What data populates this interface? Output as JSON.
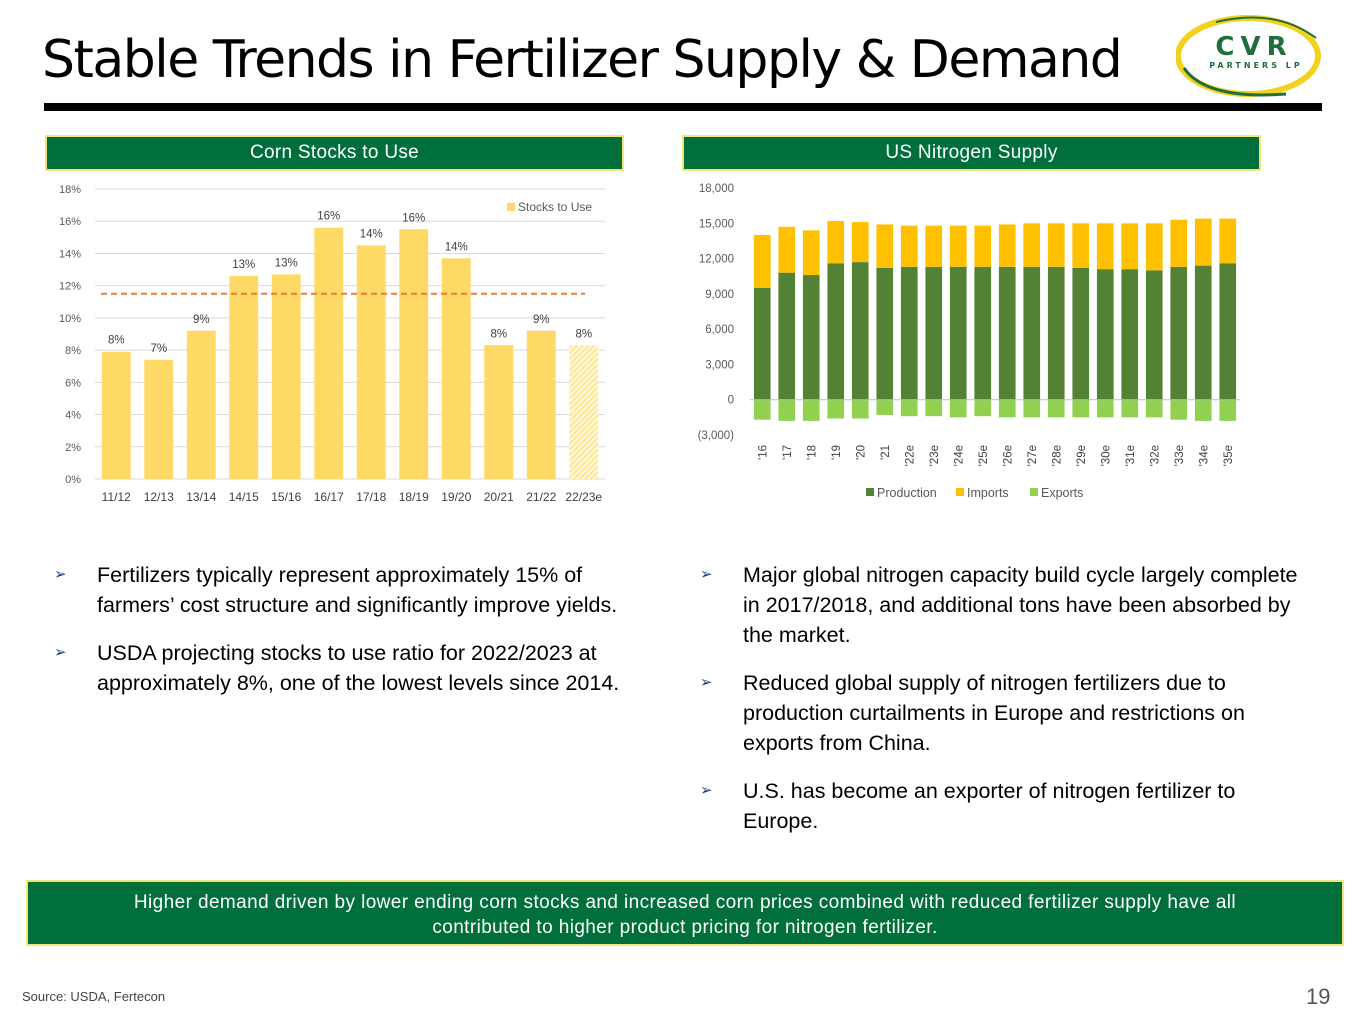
{
  "header": {
    "title": "Stable Trends in Fertilizer Supply & Demand"
  },
  "logo": {
    "line1": "CVR",
    "line2": "PARTNERS LP",
    "colors": {
      "green": "#1f6f3a",
      "yellow": "#f2d21e"
    }
  },
  "left_panel": {
    "header": "Corn Stocks to Use"
  },
  "right_panel": {
    "header": "US Nitrogen Supply"
  },
  "chart_data": [
    {
      "type": "bar",
      "title": "Corn Stocks to Use",
      "categories": [
        "11/12",
        "12/13",
        "13/14",
        "14/15",
        "15/16",
        "16/17",
        "17/18",
        "18/19",
        "19/20",
        "20/21",
        "21/22",
        "22/23e"
      ],
      "series": [
        {
          "name": "Stocks to Use",
          "values": [
            7.9,
            7.4,
            9.2,
            12.6,
            12.7,
            15.6,
            14.5,
            15.5,
            13.7,
            8.3,
            9.2,
            8.3
          ],
          "color": "#ffd966"
        }
      ],
      "data_labels": [
        "8%",
        "7%",
        "9%",
        "13%",
        "13%",
        "16%",
        "14%",
        "16%",
        "14%",
        "8%",
        "9%",
        "8%"
      ],
      "estimate_categories": [
        "22/23e"
      ],
      "average_line": {
        "value": 11.5,
        "color": "#ed7d31",
        "style": "dashed"
      },
      "ylim": [
        0,
        18
      ],
      "yticks": [
        "0%",
        "2%",
        "4%",
        "6%",
        "8%",
        "10%",
        "12%",
        "14%",
        "16%",
        "18%"
      ],
      "ytick_values": [
        0,
        2,
        4,
        6,
        8,
        10,
        12,
        14,
        16,
        18
      ],
      "grid": true,
      "legend": "top-right"
    },
    {
      "type": "bar",
      "stacked": true,
      "title": "US Nitrogen Supply",
      "categories": [
        "'16",
        "'17",
        "'18",
        "'19",
        "'20",
        "'21",
        "'22e",
        "'23e",
        "'24e",
        "'25e",
        "'26e",
        "'27e",
        "'28e",
        "'29e",
        "'30e",
        "'31e",
        "'32e",
        "'33e",
        "'34e",
        "'35e"
      ],
      "series": [
        {
          "name": "Production",
          "color": "#548235",
          "values": [
            9500,
            10800,
            10600,
            11600,
            11700,
            11200,
            11300,
            11300,
            11300,
            11300,
            11300,
            11300,
            11300,
            11200,
            11100,
            11100,
            11000,
            11300,
            11400,
            11600
          ]
        },
        {
          "name": "Imports",
          "color": "#ffc000",
          "values": [
            4500,
            3900,
            3800,
            3600,
            3400,
            3700,
            3500,
            3500,
            3500,
            3500,
            3600,
            3700,
            3700,
            3800,
            3900,
            3900,
            4000,
            4000,
            4000,
            3800
          ]
        },
        {
          "name": "Exports",
          "color": "#92d050",
          "values": [
            -1700,
            -1800,
            -1800,
            -1600,
            -1600,
            -1300,
            -1400,
            -1400,
            -1500,
            -1400,
            -1500,
            -1500,
            -1500,
            -1500,
            -1500,
            -1500,
            -1500,
            -1700,
            -1800,
            -1800
          ]
        }
      ],
      "ylim": [
        -3000,
        18000
      ],
      "yticks": [
        "(3,000)",
        "0",
        "3,000",
        "6,000",
        "9,000",
        "12,000",
        "15,000",
        "18,000"
      ],
      "ytick_values": [
        -3000,
        0,
        3000,
        6000,
        9000,
        12000,
        15000,
        18000
      ],
      "grid": false,
      "legend": "bottom"
    }
  ],
  "left_bullets": [
    "Fertilizers typically represent approximately 15% of farmers’ cost structure and significantly improve yields.",
    "USDA projecting stocks to use ratio for 2022/2023 at approximately 8%, one of the lowest levels since 2014."
  ],
  "right_bullets": [
    "Major global nitrogen capacity build cycle largely complete in 2017/2018, and additional tons have been absorbed by the market.",
    "Reduced global supply of nitrogen fertilizers due to production curtailments in Europe and restrictions on exports from China.",
    "U.S. has become an exporter of nitrogen fertilizer to Europe."
  ],
  "bullet_glyph": "➢",
  "banner": {
    "line1": "Higher demand driven by lower ending corn stocks and increased corn prices combined with reduced fertilizer supply have all",
    "line2": "contributed to higher product pricing for nitrogen fertilizer."
  },
  "footer": {
    "source": "Source:  USDA, Fertecon",
    "page_number": "19"
  }
}
